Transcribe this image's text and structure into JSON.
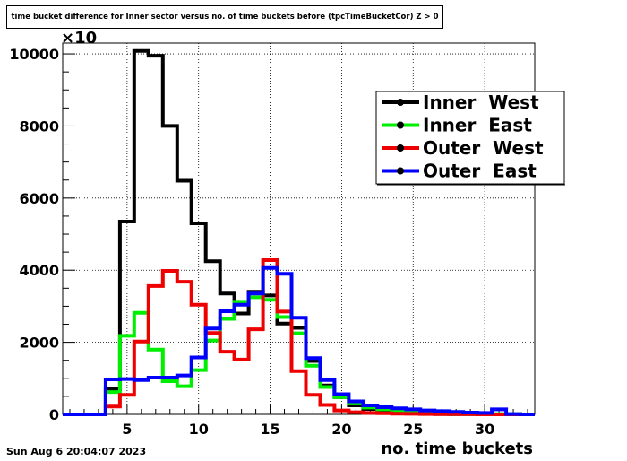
{
  "title": "time bucket difference for Inner sector versus no. of time buckets before (tpcTimeBucketCor) Z > 0",
  "footer_date": "Sun Aug  6 20:04:07 2023",
  "chart_data": {
    "type": "line",
    "title": "time bucket difference for Inner sector versus no. of time buckets before (tpcTimeBucketCor) Z > 0",
    "xlabel": "no. time buckets",
    "ylabel": "",
    "y_multiplier": "×10",
    "xlim": [
      0.5,
      33.5
    ],
    "ylim": [
      0,
      10300
    ],
    "xticks": [
      5,
      10,
      15,
      20,
      25,
      30
    ],
    "yticks": [
      0,
      2000,
      4000,
      6000,
      8000,
      10000
    ],
    "grid": true,
    "legend_position": "top-right",
    "bin_edges": [
      0.5,
      1.5,
      2.5,
      3.5,
      4.5,
      5.5,
      6.5,
      7.5,
      8.5,
      9.5,
      10.5,
      11.5,
      12.5,
      13.5,
      14.5,
      15.5,
      16.5,
      17.5,
      18.5,
      19.5,
      20.5,
      21.5,
      22.5,
      23.5,
      24.5,
      25.5,
      26.5,
      27.5,
      28.5,
      29.5,
      30.5,
      31.5,
      32.5,
      33.5
    ],
    "series": [
      {
        "name": "Inner  West",
        "color": "#000000",
        "values": [
          0,
          0,
          0,
          700,
          5350,
          10080,
          9950,
          8000,
          6480,
          5300,
          4250,
          3350,
          2800,
          3400,
          3300,
          2520,
          2400,
          1480,
          800,
          480,
          250,
          150,
          100,
          50,
          30,
          20,
          10,
          5,
          5,
          5,
          0,
          0,
          0
        ]
      },
      {
        "name": "Inner  East",
        "color": "#00ee00",
        "values": [
          0,
          0,
          0,
          620,
          2180,
          2820,
          1800,
          920,
          780,
          1230,
          2050,
          2650,
          3100,
          3250,
          3180,
          2700,
          2250,
          1350,
          760,
          480,
          300,
          190,
          140,
          110,
          80,
          60,
          40,
          30,
          20,
          15,
          10,
          5,
          0
        ]
      },
      {
        "name": "Outer  West",
        "color": "#ee0000",
        "values": [
          0,
          0,
          0,
          220,
          540,
          2020,
          3560,
          3980,
          3680,
          3040,
          2260,
          1740,
          1520,
          2360,
          4280,
          2850,
          1200,
          540,
          260,
          110,
          60,
          40,
          30,
          20,
          15,
          10,
          5,
          5,
          5,
          0,
          0,
          0,
          0
        ]
      },
      {
        "name": "Outer  East",
        "color": "#0000ff",
        "values": [
          0,
          0,
          0,
          970,
          980,
          950,
          1020,
          1020,
          1080,
          1580,
          2380,
          2860,
          3040,
          3350,
          4060,
          3900,
          2680,
          1560,
          950,
          560,
          360,
          250,
          200,
          170,
          140,
          110,
          90,
          70,
          50,
          40,
          140,
          10,
          0
        ]
      }
    ]
  }
}
